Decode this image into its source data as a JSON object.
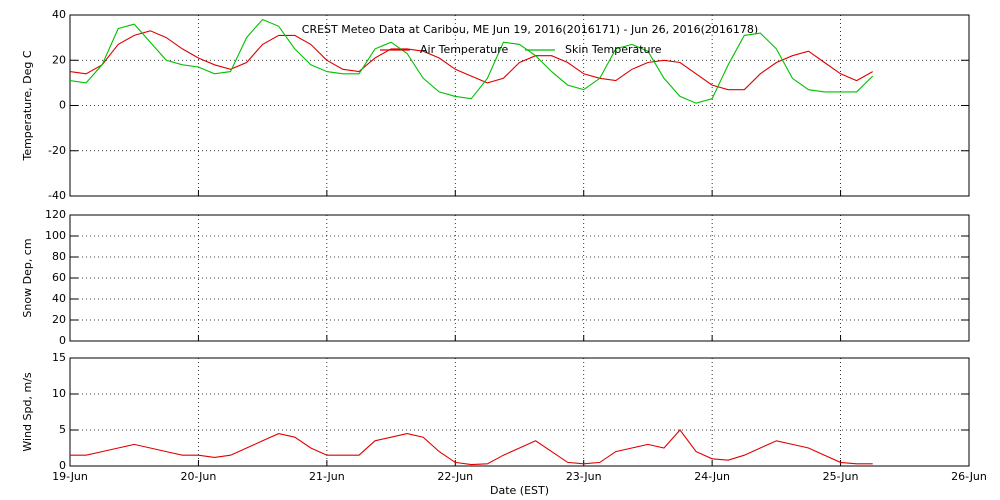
{
  "chart_data": [
    {
      "type": "line",
      "title": "CREST Meteo Data at Caribou, ME   Jun 19, 2016(2016171) - Jun 26, 2016(2016178)",
      "ylabel": "Temperature, Deg C",
      "ylim": [
        -40,
        40
      ],
      "yticks": [
        -40,
        -20,
        0,
        20,
        40
      ],
      "xlim": [
        19,
        26
      ],
      "xticks": [
        19,
        20,
        21,
        22,
        23,
        24,
        25,
        26
      ],
      "grid": true,
      "legend": "top-center",
      "x": [
        19,
        19.125,
        19.25,
        19.375,
        19.5,
        19.625,
        19.75,
        19.875,
        20,
        20.125,
        20.25,
        20.375,
        20.5,
        20.625,
        20.75,
        20.875,
        21,
        21.125,
        21.25,
        21.375,
        21.5,
        21.625,
        21.75,
        21.875,
        22,
        22.125,
        22.25,
        22.375,
        22.5,
        22.625,
        22.75,
        22.875,
        23,
        23.125,
        23.25,
        23.375,
        23.5,
        23.625,
        23.75,
        23.875,
        24,
        24.125,
        24.25,
        24.375,
        24.5,
        24.625,
        24.75,
        24.875,
        25,
        25.125,
        25.25
      ],
      "series": [
        {
          "name": "Air Temperature",
          "color": "#e00000",
          "values": [
            15,
            14,
            18,
            27,
            31,
            33,
            30,
            25,
            21,
            18,
            16,
            19,
            27,
            31,
            31,
            27,
            20,
            16,
            15,
            21,
            25,
            25,
            24,
            21,
            16,
            13,
            10,
            12,
            19,
            22,
            22,
            19,
            14,
            12,
            11,
            16,
            19,
            20,
            19,
            14,
            9,
            7,
            7,
            14,
            19,
            22,
            24,
            19,
            14,
            11,
            15
          ]
        },
        {
          "name": "Skin Temperature",
          "color": "#00c000",
          "values": [
            11,
            10,
            18,
            34,
            36,
            28,
            20,
            18,
            17,
            14,
            15,
            30,
            38,
            35,
            25,
            18,
            15,
            14,
            14,
            25,
            28,
            23,
            12,
            6,
            4,
            3,
            12,
            28,
            27,
            22,
            15,
            9,
            7,
            12,
            25,
            27,
            24,
            12,
            4,
            1,
            3,
            18,
            31,
            32,
            25,
            12,
            7,
            6,
            6,
            6,
            13
          ]
        }
      ]
    },
    {
      "type": "line",
      "ylabel": "Snow Dep, cm",
      "ylim": [
        0,
        120
      ],
      "yticks": [
        0,
        20,
        40,
        60,
        80,
        100,
        120
      ],
      "xlim": [
        19,
        26
      ],
      "xticks": [
        19,
        20,
        21,
        22,
        23,
        24,
        25,
        26
      ],
      "grid": true
    },
    {
      "type": "line",
      "ylabel": "Wind Spd, m/s",
      "xlabel": "Date (EST)",
      "ylim": [
        0,
        15
      ],
      "yticks": [
        0,
        5,
        10,
        15
      ],
      "xlim": [
        19,
        26
      ],
      "xticks": [
        {
          "value": 19,
          "label": "19-Jun"
        },
        {
          "value": 20,
          "label": "20-Jun"
        },
        {
          "value": 21,
          "label": "21-Jun"
        },
        {
          "value": 22,
          "label": "22-Jun"
        },
        {
          "value": 23,
          "label": "23-Jun"
        },
        {
          "value": 24,
          "label": "24-Jun"
        },
        {
          "value": 25,
          "label": "25-Jun"
        },
        {
          "value": 26,
          "label": "26-Jun"
        }
      ],
      "grid": true,
      "color": "#e00000",
      "x": [
        19,
        19.125,
        19.25,
        19.375,
        19.5,
        19.625,
        19.75,
        19.875,
        20,
        20.125,
        20.25,
        20.375,
        20.5,
        20.625,
        20.75,
        20.875,
        21,
        21.125,
        21.25,
        21.375,
        21.5,
        21.625,
        21.75,
        21.875,
        22,
        22.125,
        22.25,
        22.375,
        22.5,
        22.625,
        22.75,
        22.875,
        23,
        23.125,
        23.25,
        23.375,
        23.5,
        23.625,
        23.75,
        23.875,
        24,
        24.125,
        24.25,
        24.375,
        24.5,
        24.625,
        24.75,
        24.875,
        25,
        25.125,
        25.25
      ],
      "values": [
        1.5,
        1.5,
        2,
        2.5,
        3,
        2.5,
        2,
        1.5,
        1.5,
        1.2,
        1.5,
        2.5,
        3.5,
        4.5,
        4,
        2.5,
        1.5,
        1.5,
        1.5,
        3.5,
        4,
        4.5,
        4,
        2,
        0.5,
        0.2,
        0.3,
        1.5,
        2.5,
        3.5,
        2,
        0.5,
        0.3,
        0.5,
        2,
        2.5,
        3,
        2.5,
        5,
        2,
        1,
        0.8,
        1.5,
        2.5,
        3.5,
        3,
        2.5,
        1.5,
        0.5,
        0.3,
        0.3
      ]
    }
  ]
}
